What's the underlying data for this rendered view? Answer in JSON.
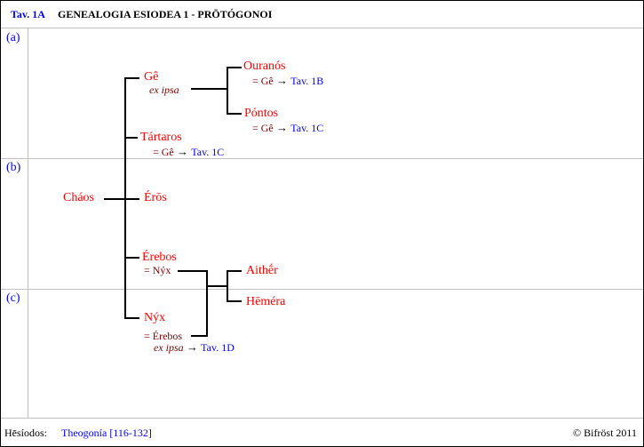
{
  "header": {
    "table_id": "Tav. 1A",
    "title": "GENEALOGIA ESIODEA 1 - PRŌTÓGONOI"
  },
  "sections": [
    "(a)",
    "(b)",
    "(c)"
  ],
  "tree": {
    "root": "Cháos",
    "ge": {
      "name": "Gê",
      "note": "ex ipsa"
    },
    "ouranos": {
      "name": "Ouranós",
      "eq": "= Gê",
      "arrow": "→",
      "ref": "Tav. 1B"
    },
    "pontos": {
      "name": "Póntos",
      "eq": "= Gê",
      "arrow": "→",
      "ref": "Tav. 1C"
    },
    "tartaros": {
      "name": "Tártaros",
      "eq": "= Gê",
      "arrow": "→",
      "ref": "Tav. 1C"
    },
    "eros": {
      "name": "Érōs"
    },
    "erebos": {
      "name": "Érebos",
      "eq": "= Nýx"
    },
    "nyx": {
      "name": "Nýx",
      "eq": "= Érebos",
      "note": "ex ipsa",
      "arrow": "→",
      "ref": "Tav. 1D"
    },
    "aither": {
      "name": "Aithḗr"
    },
    "hemera": {
      "name": "Hēméra"
    }
  },
  "footer": {
    "author": "Hēsíodos:",
    "source_link": "Theogonía [116-132]",
    "copyright": "© Bifröst 2011"
  }
}
